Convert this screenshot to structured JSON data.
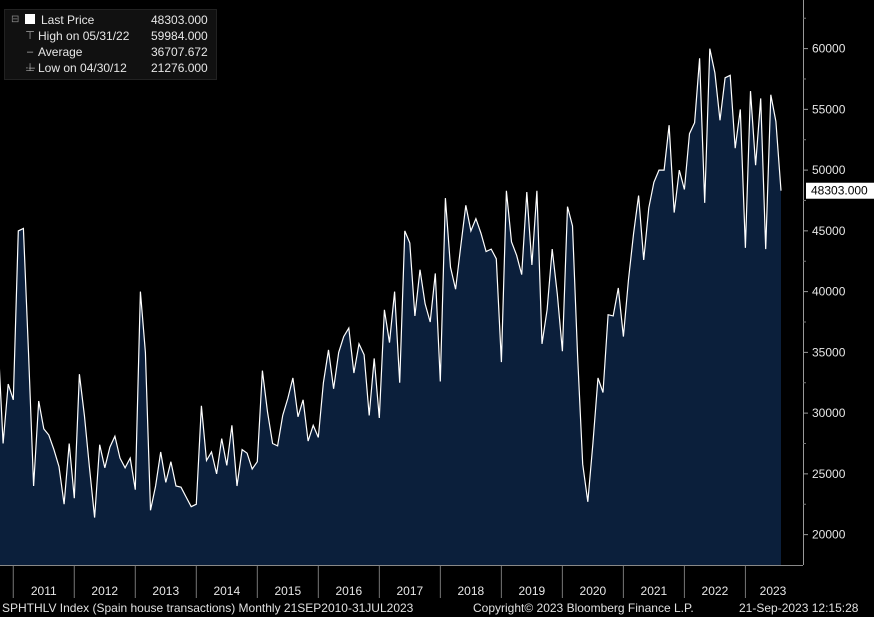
{
  "legend": {
    "last_price_label": "Last Price",
    "last_price_value": "48303.000",
    "high_label": "High on 05/31/22",
    "high_value": "59984.000",
    "average_label": "Average",
    "average_value": "36707.672",
    "low_label": "Low on 04/30/12",
    "low_value": "21276.000"
  },
  "footer": {
    "ticker": "SPHTHLV Index (Spain house transactions)  Monthly 21SEP2010-31JUL2023",
    "copyright": "Copyright© 2023 Bloomberg Finance L.P.",
    "timestamp": "21-Sep-2023 12:15:28"
  },
  "colors": {
    "fill": "#0b1f3b",
    "line": "#ffffff",
    "background": "#000000"
  },
  "chart_data": {
    "type": "area",
    "x_start": "2010-10",
    "x_end": "2023-07",
    "frequency": "monthly",
    "values": [
      36000,
      27500,
      32400,
      31100,
      45000,
      45200,
      35000,
      24000,
      31000,
      28700,
      28200,
      27000,
      25600,
      22500,
      27500,
      23000,
      33200,
      29800,
      25500,
      21400,
      27400,
      25500,
      27200,
      28100,
      26300,
      25500,
      26300,
      23700,
      40000,
      35000,
      22000,
      24000,
      26800,
      24300,
      26000,
      24000,
      23900,
      23100,
      22300,
      22500,
      30600,
      26100,
      26800,
      25000,
      27900,
      25700,
      29000,
      24000,
      27000,
      26700,
      25400,
      26000,
      33500,
      30100,
      27500,
      27300,
      29800,
      31200,
      32900,
      29700,
      31100,
      27700,
      29000,
      28000,
      32500,
      35200,
      32000,
      35000,
      36300,
      37000,
      33300,
      35700,
      34800,
      29800,
      34500,
      29600,
      38500,
      35800,
      40000,
      32500,
      45000,
      44000,
      38000,
      41800,
      39000,
      37500,
      41500,
      32600,
      47700,
      42000,
      40200,
      43700,
      47100,
      45000,
      46000,
      44800,
      43300,
      43500,
      42700,
      34200,
      48300,
      44100,
      43000,
      41400,
      48200,
      42200,
      48300,
      35700,
      38500,
      43500,
      39800,
      35100,
      47000,
      45400,
      34700,
      25800,
      22700,
      27500,
      32900,
      31700,
      38100,
      38000,
      40300,
      36300,
      41000,
      44800,
      47900,
      42600,
      46900,
      49000,
      50000,
      50000,
      53700,
      46500,
      50000,
      48400,
      53000,
      53900,
      59200,
      47300,
      60000,
      58000,
      54100,
      57600,
      57800,
      51800,
      55000,
      43600,
      56500,
      50400,
      55900,
      43500,
      56200,
      54000,
      48303
    ],
    "x_tick_labels": [
      "2011",
      "2012",
      "2013",
      "2014",
      "2015",
      "2016",
      "2017",
      "2018",
      "2019",
      "2020",
      "2021",
      "2022",
      "2023"
    ],
    "y_tick_labels": [
      "20000",
      "25000",
      "30000",
      "35000",
      "40000",
      "45000",
      "50000",
      "55000",
      "60000"
    ],
    "ylim": [
      17500,
      64000
    ],
    "last_value_label": "48303.000",
    "grid": false,
    "legend_position": "top-left"
  }
}
